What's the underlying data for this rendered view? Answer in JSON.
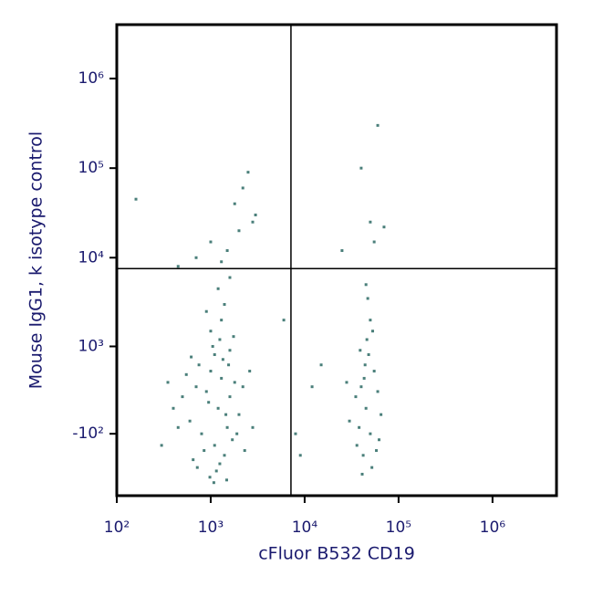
{
  "chart_data": {
    "type": "scatter",
    "xlabel": "cFluor B532 CD19",
    "ylabel": "Mouse IgG1, k isotype control",
    "xscale": "log",
    "yscale": "asinh",
    "ylinthresh": 300,
    "xlim": [
      100,
      4800000
    ],
    "ylim": [
      -1000,
      4000000
    ],
    "xticks": [
      {
        "value": 100,
        "label": "10²"
      },
      {
        "value": 1000,
        "label": "10³"
      },
      {
        "value": 10000,
        "label": "10⁴"
      },
      {
        "value": 100000,
        "label": "10⁵"
      },
      {
        "value": 1000000,
        "label": "10⁶"
      }
    ],
    "yticks": [
      {
        "value": -100,
        "label": "-10²"
      },
      {
        "value": 1000,
        "label": "10³"
      },
      {
        "value": 10000,
        "label": "10⁴"
      },
      {
        "value": 100000,
        "label": "10⁵"
      },
      {
        "value": 1000000,
        "label": "10⁶"
      }
    ],
    "gates": {
      "x": 7150,
      "y": 7560
    },
    "color": "#4a7f7a",
    "x": [
      1200,
      900,
      1500,
      700,
      1100,
      1300,
      800,
      1600,
      1000,
      600,
      1400,
      1800,
      950,
      1250,
      750,
      2000,
      1100,
      500,
      1350,
      850,
      1700,
      650,
      1050,
      1450,
      1900,
      550,
      1150,
      1250,
      720,
      2200,
      1600,
      450,
      980,
      1550,
      1000,
      1300,
      1400,
      1200,
      1600,
      900,
      2300,
      400,
      350,
      2600,
      1750,
      620,
      1080,
      1480,
      300,
      2800,
      1500,
      2000,
      1800,
      2500,
      1000,
      2200,
      3000,
      1300,
      2800,
      700,
      160,
      450,
      45000,
      40000,
      50000,
      35000,
      55000,
      42000,
      48000,
      38000,
      60000,
      30000,
      46000,
      52000,
      44000,
      36000,
      58000,
      50000,
      47000,
      43000,
      65000,
      28000,
      41000,
      53000,
      39000,
      62000,
      45000,
      55000,
      40000,
      60000,
      50000,
      25000,
      70000,
      8000,
      12000,
      6000,
      15000,
      9000
    ],
    "values": [
      100,
      250,
      -50,
      300,
      -200,
      400,
      -100,
      200,
      500,
      0,
      -300,
      350,
      150,
      -400,
      600,
      50,
      800,
      200,
      700,
      -250,
      -150,
      -350,
      1000,
      50,
      -100,
      450,
      -500,
      1200,
      -450,
      300,
      900,
      -50,
      -600,
      600,
      1500,
      2000,
      3000,
      4500,
      6000,
      2500,
      -250,
      100,
      350,
      500,
      1300,
      750,
      -700,
      -650,
      -200,
      -50,
      12000,
      20000,
      40000,
      90000,
      15000,
      60000,
      30000,
      9000,
      25000,
      10000,
      45000,
      8000,
      100,
      300,
      -100,
      200,
      500,
      -300,
      800,
      -50,
      250,
      0,
      1200,
      -450,
      600,
      -200,
      -250,
      2000,
      3500,
      400,
      50,
      350,
      -550,
      1500,
      900,
      -150,
      5000,
      15000,
      100000,
      300000,
      25000,
      12000,
      22000,
      -100,
      300,
      2000,
      600,
      -300
    ]
  }
}
